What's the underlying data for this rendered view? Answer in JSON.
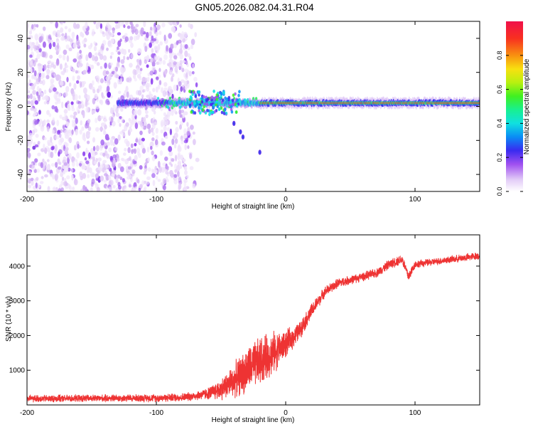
{
  "title": "GN05.2026.082.04.31.R04",
  "colors": {
    "snr_line": "#ee3333",
    "spectrogram_noise": "#8833ee",
    "axis": "#000000"
  },
  "colorbar": {
    "label": "Normalized spectral amplitude",
    "ticks": [
      0.0,
      0.2,
      0.4,
      0.6,
      0.8
    ],
    "tick_labels": [
      "0.0",
      "0.2",
      "0.4",
      "0.6",
      "0.8"
    ],
    "range": [
      0,
      1
    ]
  },
  "chart_data": [
    {
      "type": "heatmap",
      "title": "GN05.2026.082.04.31.R04",
      "xlabel": "Height of straight line (km)",
      "ylabel": "Frequency (Hz)",
      "xlim": [
        -200,
        150
      ],
      "ylim": [
        -50,
        50
      ],
      "xticks": [
        -200,
        -100,
        0,
        100
      ],
      "xtick_labels": [
        "-200",
        "-100",
        "0",
        "100"
      ],
      "yticks": [
        -40,
        -20,
        0,
        20,
        40
      ],
      "ytick_labels": [
        "-40",
        "-20",
        "0",
        "20",
        "40"
      ],
      "features": {
        "broadband_noise_x_range": [
          -200,
          -75
        ],
        "tone_frequency_hz": 2,
        "tone_onset_km": -130,
        "tone_saturated_from_km": -20,
        "downward_tail_points": [
          [
            -40,
            -10
          ],
          [
            -35,
            -15
          ],
          [
            -33,
            -18
          ],
          [
            -20,
            -27
          ]
        ]
      }
    },
    {
      "type": "line",
      "xlabel": "Height of straight line (km)",
      "ylabel": "SNR (10 * v/v)",
      "xlim": [
        -200,
        150
      ],
      "ylim": [
        0,
        4900
      ],
      "xticks": [
        -200,
        -100,
        0,
        100
      ],
      "xtick_labels": [
        "-200",
        "-100",
        "0",
        "100"
      ],
      "yticks": [
        1000,
        2000,
        3000,
        4000
      ],
      "ytick_labels": [
        "1000",
        "2000",
        "3000",
        "4000"
      ],
      "series": [
        {
          "name": "SNR",
          "x": [
            -200,
            -150,
            -100,
            -80,
            -70,
            -60,
            -50,
            -40,
            -30,
            -20,
            -10,
            0,
            10,
            20,
            30,
            40,
            50,
            60,
            70,
            80,
            90,
            95,
            100,
            110,
            120,
            130,
            140,
            150
          ],
          "y": [
            180,
            190,
            200,
            220,
            260,
            330,
            450,
            700,
            1000,
            1250,
            1500,
            1750,
            2100,
            2700,
            3250,
            3500,
            3600,
            3700,
            3800,
            4050,
            4200,
            3700,
            4050,
            4100,
            4150,
            4200,
            4250,
            4300
          ],
          "noise": [
            120,
            120,
            130,
            140,
            150,
            200,
            350,
            550,
            750,
            800,
            700,
            450,
            300,
            250,
            180,
            160,
            150,
            150,
            150,
            160,
            170,
            200,
            130,
            120,
            120,
            120,
            130,
            130
          ]
        }
      ]
    }
  ]
}
